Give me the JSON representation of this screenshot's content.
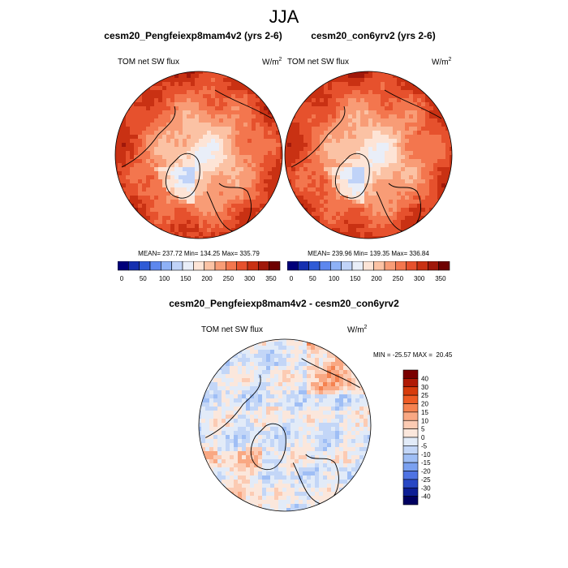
{
  "chart_data": [
    {
      "type": "heatmap",
      "projection": "north-polar-stereographic",
      "title": "JJA",
      "panel_title": "cesm20_Pengfeiexp8mam4v2 (yrs 2-6)",
      "variable": "TOM net SW flux",
      "units_base": "W/m",
      "units_exp": "2",
      "stats_label": "MEAN= 237.72  Min= 134.25  Max= 335.79",
      "mean": 237.72,
      "min": 134.25,
      "max": 335.79,
      "colorbar_levels": [
        0,
        50,
        100,
        150,
        200,
        250,
        300,
        350
      ],
      "colorbar_colors": [
        "#00007a",
        "#1530b0",
        "#2f5bd6",
        "#5d87ee",
        "#8eb1f6",
        "#c0d3f8",
        "#e9eef8",
        "#fde4d6",
        "#fbc2a4",
        "#f89c76",
        "#f3764e",
        "#e6512d",
        "#c93113",
        "#a0180a",
        "#6e0000"
      ]
    },
    {
      "type": "heatmap",
      "projection": "north-polar-stereographic",
      "panel_title": "cesm20_con6yrv2 (yrs 2-6)",
      "variable": "TOM net SW flux",
      "units_base": "W/m",
      "units_exp": "2",
      "stats_label": "MEAN= 239.96  Min= 139.35  Max= 336.84",
      "mean": 239.96,
      "min": 139.35,
      "max": 336.84,
      "colorbar_levels": [
        0,
        50,
        100,
        150,
        200,
        250,
        300,
        350
      ]
    },
    {
      "type": "heatmap",
      "projection": "north-polar-stereographic",
      "panel_title": "cesm20_Pengfeiexp8mam4v2 - cesm20_con6yrv2",
      "variable": "TOM net SW flux",
      "units_base": "W/m",
      "units_exp": "2",
      "stats_label": "MIN = -25.57 MAX =  20.45",
      "min": -25.57,
      "max": 20.45,
      "colorbar_levels": [
        40,
        30,
        25,
        20,
        15,
        10,
        5,
        0,
        -5,
        -10,
        -15,
        -20,
        -25,
        -30,
        -40
      ],
      "colorbar_colors": [
        "#7a0000",
        "#b01a05",
        "#d73c0c",
        "#ee5b24",
        "#f58250",
        "#f9a883",
        "#fccbb3",
        "#fbe7dc",
        "#e2ebf8",
        "#c3d6f7",
        "#9fbef5",
        "#7aa0f0",
        "#4f73e3",
        "#2847c4",
        "#0d1e95",
        "#000060"
      ]
    }
  ]
}
